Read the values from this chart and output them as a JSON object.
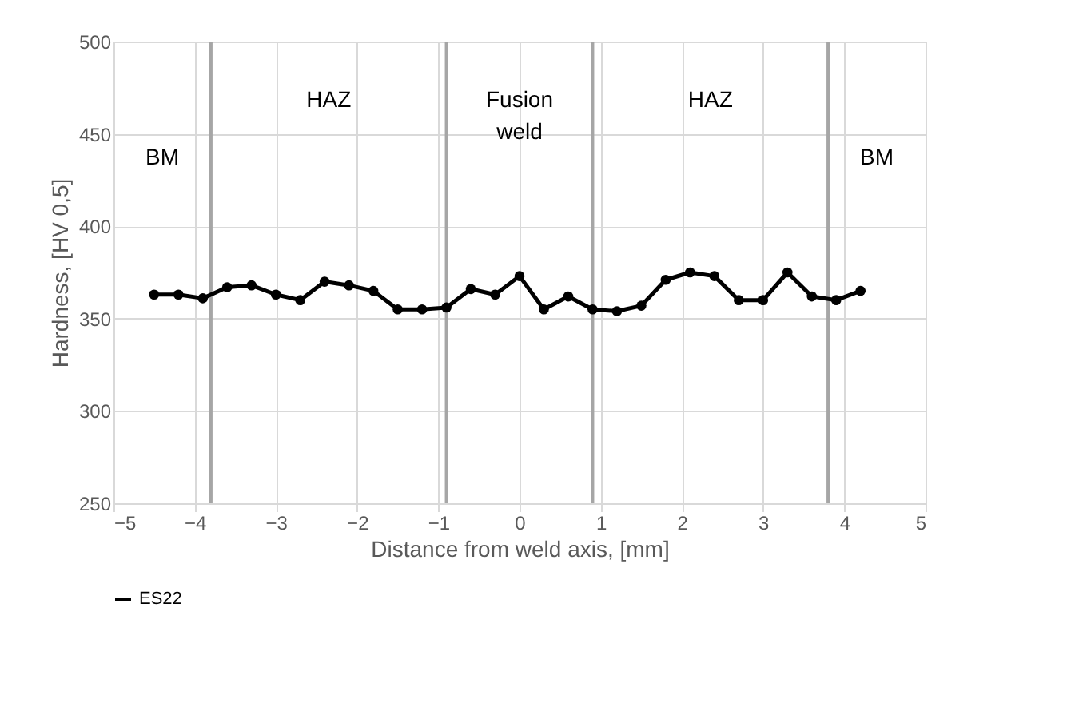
{
  "chart_data": {
    "type": "line",
    "xlabel": "Distance from weld axis, [mm]",
    "ylabel": "Hardness, [HV 0,5]",
    "x": [
      -4.5,
      -4.2,
      -3.9,
      -3.6,
      -3.3,
      -3.0,
      -2.7,
      -2.4,
      -2.1,
      -1.8,
      -1.5,
      -1.2,
      -0.9,
      -0.6,
      -0.3,
      0,
      0.3,
      0.6,
      0.9,
      1.2,
      1.5,
      1.8,
      2.1,
      2.4,
      2.7,
      3.0,
      3.3,
      3.6,
      3.9,
      4.2
    ],
    "series": [
      {
        "name": "ES22",
        "color": "#000000",
        "values": [
          363,
          363,
          361,
          367,
          368,
          363,
          360,
          370,
          368,
          365,
          355,
          355,
          356,
          366,
          363,
          373,
          355,
          362,
          355,
          354,
          357,
          371,
          375,
          373,
          360,
          360,
          375,
          362,
          360,
          365
        ]
      }
    ],
    "xlim": [
      -5,
      5
    ],
    "xticks": [
      -5,
      -4,
      -3,
      -2,
      -1,
      0,
      1,
      2,
      3,
      4,
      5
    ],
    "ylim": [
      250,
      500
    ],
    "yticks": [
      250,
      300,
      350,
      400,
      450,
      500
    ],
    "ref_lines": [
      {
        "axis": "x",
        "value": -3.8,
        "color": "#a6a6a6"
      },
      {
        "axis": "x",
        "value": -0.9,
        "color": "#a6a6a6"
      },
      {
        "axis": "x",
        "value": 0.9,
        "color": "#a6a6a6"
      },
      {
        "axis": "x",
        "value": 3.8,
        "color": "#a6a6a6"
      }
    ],
    "annotations": [
      "BM",
      "HAZ",
      "Fusion\nweld",
      "HAZ",
      "BM"
    ],
    "grid": true,
    "legend": "bottom",
    "marker": "circle",
    "line_style": "solid"
  }
}
